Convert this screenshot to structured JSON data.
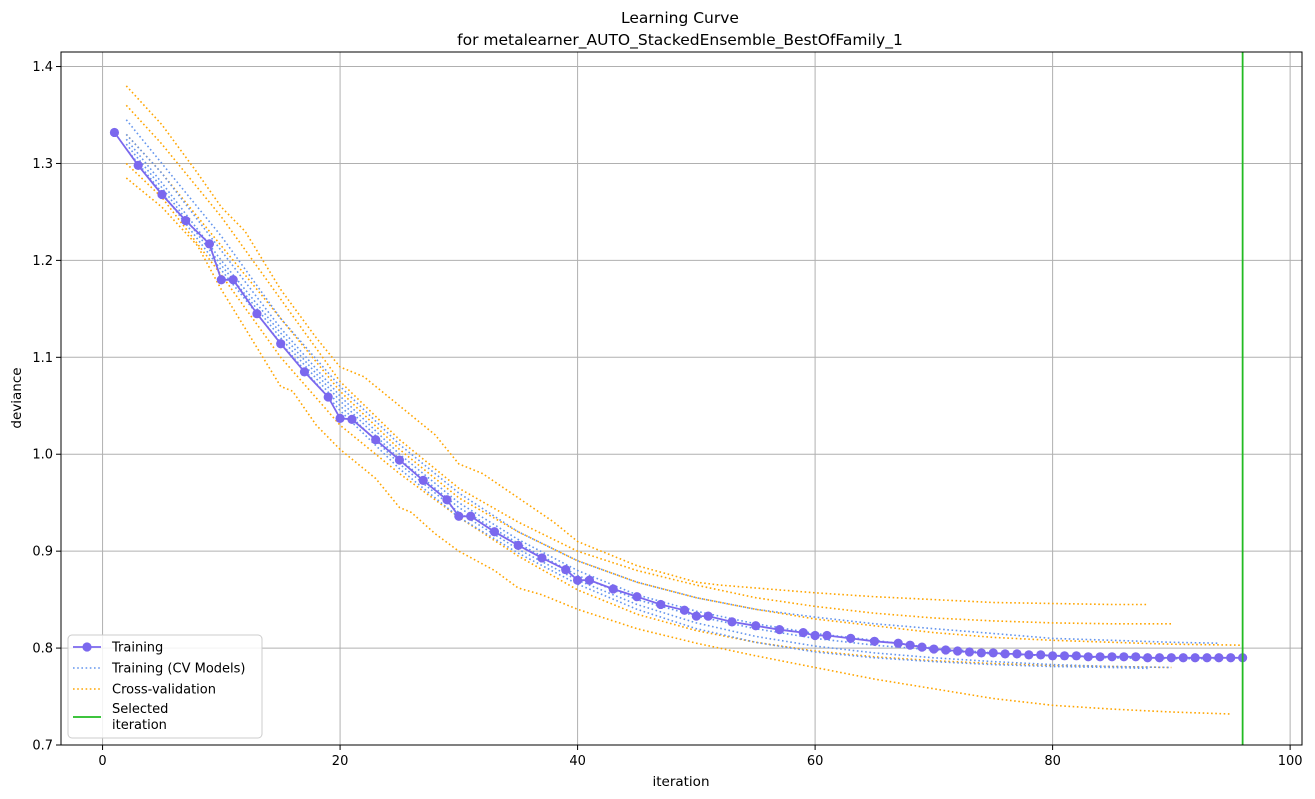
{
  "chart_data": {
    "type": "line",
    "title": "Learning Curve",
    "subtitle": "for metalearner_AUTO_StackedEnsemble_BestOfFamily_1",
    "xlabel": "iteration",
    "ylabel": "deviance",
    "xlim": [
      -3.5,
      101
    ],
    "ylim": [
      0.7,
      1.415
    ],
    "xticks": [
      "0",
      "20",
      "40",
      "60",
      "80",
      "100"
    ],
    "yticks": [
      "0.7",
      "0.8",
      "0.9",
      "1.0",
      "1.1",
      "1.2",
      "1.3",
      "1.4"
    ],
    "grid": true,
    "legend_position": "lower-left",
    "colors": {
      "training": "#7B68EE",
      "training_cv": "#6495ED",
      "cross_validation": "#FFA500",
      "selected": "#22BB22"
    },
    "legend": [
      {
        "label": "Training",
        "style": "line-marker",
        "color": "#7B68EE"
      },
      {
        "label": "Training (CV Models)",
        "style": "dotted",
        "color": "#6495ED"
      },
      {
        "label": "Cross-validation",
        "style": "dotted",
        "color": "#FFA500"
      },
      {
        "label": "Selected\niteration",
        "style": "solid",
        "color": "#22BB22"
      }
    ],
    "selected_iteration": 96,
    "series": [
      {
        "name": "Training",
        "style": "line-marker",
        "color": "#7B68EE",
        "x": [
          1,
          3,
          5,
          7,
          9,
          10,
          11,
          13,
          15,
          17,
          19,
          20,
          21,
          23,
          25,
          27,
          29,
          30,
          31,
          33,
          35,
          37,
          39,
          40,
          41,
          43,
          45,
          47,
          49,
          50,
          51,
          53,
          55,
          57,
          59,
          60,
          61,
          63,
          65,
          67,
          68,
          69,
          70,
          71,
          72,
          73,
          74,
          75,
          76,
          77,
          78,
          79,
          80,
          81,
          82,
          83,
          84,
          85,
          86,
          87,
          88,
          89,
          90,
          91,
          92,
          93,
          94,
          95,
          96
        ],
        "y": [
          1.332,
          1.298,
          1.268,
          1.241,
          1.217,
          1.18,
          1.18,
          1.145,
          1.114,
          1.085,
          1.059,
          1.037,
          1.036,
          1.015,
          0.994,
          0.973,
          0.953,
          0.936,
          0.936,
          0.92,
          0.906,
          0.893,
          0.881,
          0.87,
          0.87,
          0.861,
          0.853,
          0.845,
          0.839,
          0.833,
          0.833,
          0.827,
          0.823,
          0.819,
          0.816,
          0.813,
          0.813,
          0.81,
          0.807,
          0.805,
          0.803,
          0.801,
          0.799,
          0.798,
          0.797,
          0.796,
          0.795,
          0.795,
          0.794,
          0.794,
          0.793,
          0.793,
          0.792,
          0.792,
          0.792,
          0.791,
          0.791,
          0.791,
          0.791,
          0.791,
          0.79,
          0.79,
          0.79,
          0.79,
          0.79,
          0.79,
          0.79,
          0.79,
          0.79
        ]
      },
      {
        "name": "Training (CV Models)",
        "style": "dotted",
        "color": "#6495ED",
        "x": [
          2,
          5,
          10,
          15,
          20,
          25,
          30,
          35,
          40,
          45,
          50,
          55,
          60,
          65,
          70,
          75,
          80,
          85,
          90,
          94
        ],
        "y": [
          1.345,
          1.3,
          1.225,
          1.14,
          1.07,
          1.01,
          0.96,
          0.92,
          0.89,
          0.868,
          0.852,
          0.84,
          0.832,
          0.825,
          0.82,
          0.815,
          0.81,
          0.808,
          0.806,
          0.805
        ]
      },
      {
        "name": "Training (CV Models)",
        "style": "dotted",
        "color": "#6495ED",
        "x": [
          2,
          5,
          10,
          15,
          20,
          25,
          30,
          35,
          40,
          45,
          50,
          55,
          60,
          65,
          70,
          75,
          80,
          85,
          90,
          94
        ],
        "y": [
          1.33,
          1.29,
          1.21,
          1.13,
          1.06,
          1.0,
          0.95,
          0.912,
          0.88,
          0.855,
          0.838,
          0.825,
          0.815,
          0.808,
          0.8,
          0.795,
          0.792,
          0.79,
          0.789,
          0.789
        ]
      },
      {
        "name": "Training (CV Models)",
        "style": "dotted",
        "color": "#6495ED",
        "x": [
          2,
          5,
          10,
          15,
          20,
          25,
          30,
          35,
          40,
          45,
          50,
          55,
          60,
          65,
          70,
          75,
          80,
          85,
          90,
          94
        ],
        "y": [
          1.325,
          1.28,
          1.2,
          1.125,
          1.055,
          0.995,
          0.945,
          0.908,
          0.875,
          0.85,
          0.833,
          0.82,
          0.81,
          0.803,
          0.798,
          0.794,
          0.792,
          0.79,
          0.79,
          0.79
        ]
      },
      {
        "name": "Training (CV Models)",
        "style": "dotted",
        "color": "#6495ED",
        "x": [
          2,
          5,
          10,
          15,
          20,
          25,
          30,
          35,
          40,
          45,
          50,
          55,
          60,
          65,
          70,
          75,
          80,
          85,
          90
        ],
        "y": [
          1.32,
          1.275,
          1.195,
          1.12,
          1.05,
          0.99,
          0.94,
          0.902,
          0.87,
          0.845,
          0.826,
          0.812,
          0.802,
          0.795,
          0.79,
          0.786,
          0.783,
          0.781,
          0.78
        ]
      },
      {
        "name": "Training (CV Models)",
        "style": "dotted",
        "color": "#6495ED",
        "x": [
          2,
          5,
          10,
          15,
          20,
          25,
          30,
          35,
          40,
          45,
          50,
          55,
          60,
          65,
          70,
          75,
          80,
          85,
          88
        ],
        "y": [
          1.315,
          1.27,
          1.19,
          1.115,
          1.045,
          0.985,
          0.935,
          0.898,
          0.866,
          0.84,
          0.82,
          0.806,
          0.796,
          0.79,
          0.786,
          0.783,
          0.781,
          0.78,
          0.779
        ]
      },
      {
        "name": "Cross-validation",
        "style": "dotted",
        "color": "#FFA500",
        "x": [
          2,
          5,
          8,
          10,
          12,
          15,
          18,
          20,
          22,
          25,
          28,
          30,
          32,
          35,
          38,
          40,
          42,
          45,
          48,
          50,
          52,
          55,
          60,
          65,
          70,
          75,
          80,
          85,
          88
        ],
        "y": [
          1.38,
          1.34,
          1.29,
          1.255,
          1.23,
          1.17,
          1.12,
          1.09,
          1.08,
          1.05,
          1.02,
          0.99,
          0.98,
          0.955,
          0.93,
          0.91,
          0.9,
          0.885,
          0.875,
          0.868,
          0.865,
          0.862,
          0.857,
          0.853,
          0.85,
          0.847,
          0.846,
          0.845,
          0.845
        ]
      },
      {
        "name": "Cross-validation",
        "style": "dotted",
        "color": "#FFA500",
        "x": [
          2,
          5,
          10,
          15,
          20,
          25,
          30,
          35,
          40,
          45,
          50,
          55,
          60,
          65,
          70,
          75,
          80,
          85,
          90
        ],
        "y": [
          1.36,
          1.32,
          1.245,
          1.16,
          1.075,
          1.015,
          0.965,
          0.93,
          0.9,
          0.88,
          0.865,
          0.852,
          0.843,
          0.836,
          0.831,
          0.828,
          0.826,
          0.825,
          0.825
        ]
      },
      {
        "name": "Cross-validation",
        "style": "dotted",
        "color": "#FFA500",
        "x": [
          2,
          5,
          10,
          15,
          20,
          25,
          30,
          35,
          40,
          45,
          50,
          55,
          60,
          65,
          70,
          75,
          80,
          85,
          90,
          96
        ],
        "y": [
          1.33,
          1.29,
          1.215,
          1.14,
          1.065,
          1.005,
          0.955,
          0.92,
          0.89,
          0.868,
          0.852,
          0.84,
          0.83,
          0.823,
          0.816,
          0.811,
          0.808,
          0.806,
          0.804,
          0.803
        ]
      },
      {
        "name": "Cross-validation",
        "style": "dotted",
        "color": "#FFA500",
        "x": [
          2,
          5,
          10,
          15,
          20,
          25,
          30,
          35,
          40,
          45,
          50,
          55,
          60,
          65,
          70,
          75,
          80,
          85,
          90
        ],
        "y": [
          1.3,
          1.265,
          1.185,
          1.1,
          1.03,
          0.98,
          0.935,
          0.895,
          0.86,
          0.835,
          0.818,
          0.806,
          0.797,
          0.791,
          0.787,
          0.784,
          0.782,
          0.781,
          0.78
        ]
      },
      {
        "name": "Cross-validation",
        "style": "dotted",
        "color": "#FFA500",
        "x": [
          2,
          5,
          8,
          10,
          12,
          14,
          15,
          16,
          18,
          20,
          23,
          25,
          26,
          28,
          30,
          33,
          35,
          37,
          40,
          45,
          50,
          55,
          60,
          65,
          70,
          75,
          80,
          85,
          90,
          95
        ],
        "y": [
          1.285,
          1.255,
          1.215,
          1.17,
          1.13,
          1.09,
          1.07,
          1.065,
          1.03,
          1.005,
          0.975,
          0.945,
          0.94,
          0.918,
          0.9,
          0.88,
          0.862,
          0.855,
          0.84,
          0.82,
          0.805,
          0.792,
          0.78,
          0.768,
          0.758,
          0.748,
          0.741,
          0.737,
          0.734,
          0.732
        ]
      }
    ]
  }
}
